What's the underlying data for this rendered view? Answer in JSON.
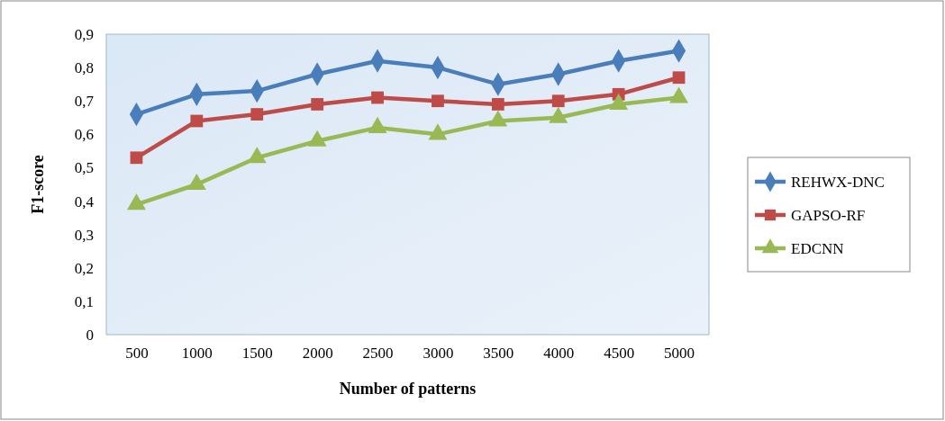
{
  "chart_data": {
    "type": "line",
    "xlabel": "Number of patterns",
    "ylabel": "F1-score",
    "categories": [
      "500",
      "1000",
      "1500",
      "2000",
      "2500",
      "3000",
      "3500",
      "4000",
      "4500",
      "5000"
    ],
    "ylim": [
      0,
      0.9
    ],
    "yticks": [
      0,
      {
        "value": 0.1,
        "label": "0,1"
      },
      {
        "value": 0.2,
        "label": "0,2"
      },
      {
        "value": 0.3,
        "label": "0,3"
      },
      {
        "value": 0.4,
        "label": "0,4"
      },
      {
        "value": 0.5,
        "label": "0,5"
      },
      {
        "value": 0.6,
        "label": "0,6"
      },
      {
        "value": 0.7,
        "label": "0,7"
      },
      {
        "value": 0.8,
        "label": "0,8"
      },
      {
        "value": 0.9,
        "label": "0,9"
      }
    ],
    "grid": false,
    "legend": "right",
    "line_style": "solid",
    "series": [
      {
        "name": "REHWX-DNC",
        "color": "#4a7ebb",
        "marker": "diamond",
        "values": [
          0.66,
          0.72,
          0.73,
          0.78,
          0.82,
          0.8,
          0.75,
          0.78,
          0.82,
          0.85
        ]
      },
      {
        "name": "GAPSO-RF",
        "color": "#be4b48",
        "marker": "square",
        "values": [
          0.53,
          0.64,
          0.66,
          0.69,
          0.71,
          0.7,
          0.69,
          0.7,
          0.72,
          0.77
        ]
      },
      {
        "name": "EDCNN",
        "color": "#98b954",
        "marker": "triangle",
        "values": [
          0.39,
          0.45,
          0.53,
          0.58,
          0.62,
          0.6,
          0.64,
          0.65,
          0.69,
          0.71
        ]
      }
    ]
  }
}
